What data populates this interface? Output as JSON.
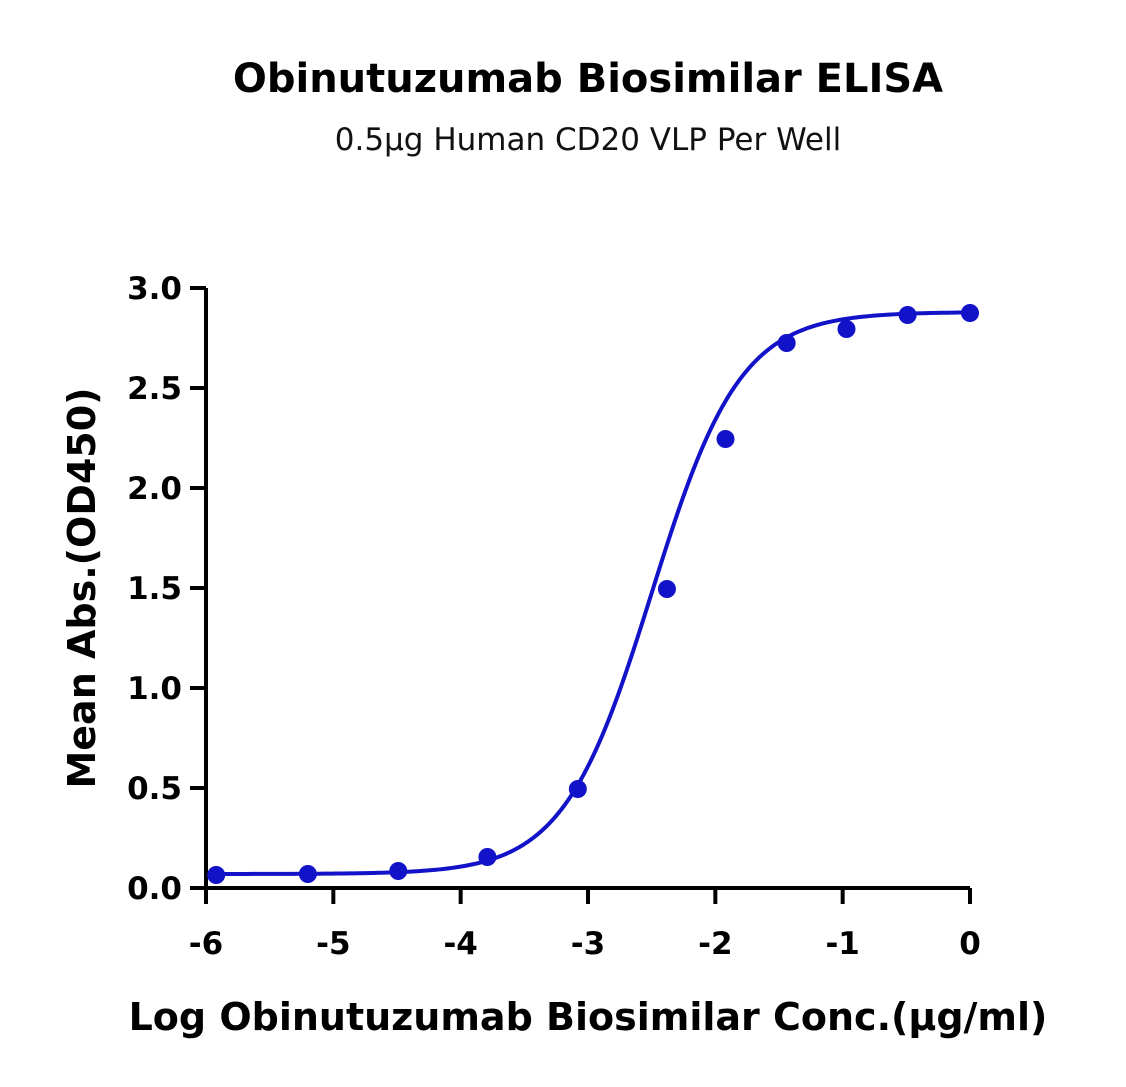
{
  "chart_data": {
    "type": "scatter",
    "title": "Obinutuzumab Biosimilar ELISA",
    "subtitle": "0.5µg Human CD20 VLP Per Well",
    "xlabel": "Log Obinutuzumab Biosimilar Conc.(µg/ml)",
    "ylabel": "Mean Abs.(OD450)",
    "xlim": [
      -6,
      0
    ],
    "ylim": [
      0,
      3.0
    ],
    "xticks": [
      -6,
      -5,
      -4,
      -3,
      -2,
      -1,
      0
    ],
    "xtick_labels": [
      "-6",
      "-5",
      "-4",
      "-3",
      "-2",
      "-1",
      "0"
    ],
    "yticks": [
      0,
      0.5,
      1.0,
      1.5,
      2.0,
      2.5,
      3.0
    ],
    "ytick_labels": [
      "0.0",
      "0.5",
      "1.0",
      "1.5",
      "2.0",
      "2.5",
      "3.0"
    ],
    "grid": false,
    "legend": "none",
    "color": "#1212c8",
    "series": [
      {
        "x": [
          -5.92,
          -5.2,
          -4.49,
          -3.79,
          -3.08,
          -2.38,
          -1.92,
          -1.44,
          -0.97,
          -0.49,
          0.0
        ],
        "y": [
          0.065,
          0.07,
          0.085,
          0.155,
          0.495,
          1.495,
          2.245,
          2.725,
          2.795,
          2.865,
          2.875
        ]
      }
    ],
    "fit_curve": {
      "model": "4PL",
      "bottom": 0.07,
      "top": 2.88,
      "log_ec50": -2.5,
      "hill_slope": 1.25,
      "x_range": [
        -5.92,
        0.0
      ]
    }
  }
}
